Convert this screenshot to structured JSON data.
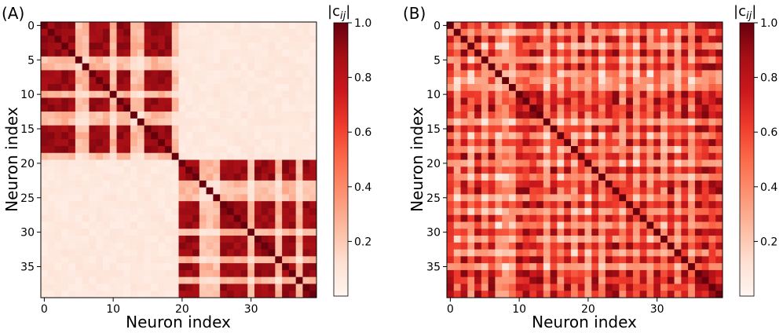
{
  "figure": {
    "colorbar_label": "|c",
    "colorbar_label_sub": "ij",
    "colorbar_label_end": "|"
  },
  "chart_data": [
    {
      "type": "heatmap",
      "panel": "(A)",
      "xlabel": "Neuron index",
      "ylabel": "Neuron index",
      "n": 40,
      "xticks": [
        0,
        10,
        20,
        30
      ],
      "yticks": [
        0,
        5,
        10,
        15,
        20,
        25,
        30,
        35
      ],
      "cmap": "Reds",
      "vmin": 0,
      "vmax": 1,
      "colorbar_ticks": [
        0.2,
        0.4,
        0.6,
        0.8,
        1.0
      ],
      "colorbar_tick_labels": [
        "0.2",
        "0.4",
        "0.6",
        "0.8",
        "1.0"
      ],
      "structure": "two_blocks",
      "blocks": [
        {
          "range": [
            0,
            19
          ],
          "strong_members": [
            0,
            1,
            2,
            3,
            4,
            7,
            8,
            9,
            11,
            12,
            15,
            16,
            17,
            18
          ],
          "strong_value": 0.9,
          "weak_value": 0.25
        },
        {
          "range": [
            20,
            39
          ],
          "strong_members": [
            20,
            21,
            22,
            26,
            27,
            28,
            29,
            31,
            32,
            33,
            35,
            36,
            38,
            39
          ],
          "strong_value": 0.9,
          "weak_value": 0.25
        }
      ],
      "off_block_value": 0.05,
      "diagonal_value": 1.0,
      "seed": 7
    },
    {
      "type": "heatmap",
      "panel": "(B)",
      "xlabel": "Neuron index",
      "ylabel": "Neuron index",
      "n": 40,
      "xticks": [
        0,
        10,
        20,
        30
      ],
      "yticks": [
        0,
        5,
        10,
        15,
        20,
        25,
        30,
        35
      ],
      "cmap": "Reds",
      "vmin": 0,
      "vmax": 1,
      "colorbar_ticks": [
        0.2,
        0.4,
        0.6,
        0.8,
        1.0
      ],
      "colorbar_tick_labels": [
        "0.2",
        "0.4",
        "0.6",
        "0.8",
        "1.0"
      ],
      "structure": "mixed",
      "strong_members": [
        0,
        2,
        4,
        6,
        10,
        11,
        12,
        13,
        15,
        17,
        19,
        21,
        23,
        24,
        26,
        28,
        30,
        32,
        34,
        36,
        37,
        38,
        39
      ],
      "diagonal_value": 1.0,
      "seed": 13
    }
  ]
}
